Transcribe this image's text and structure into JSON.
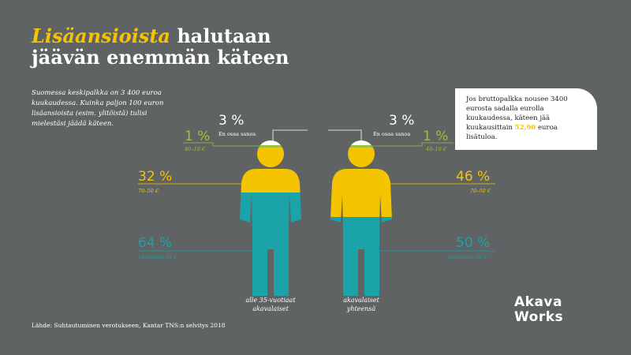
{
  "title": {
    "highlight": "Lisäansioista",
    "rest_line1": "halutaan",
    "line2": "jäävän enemmän käteen"
  },
  "intro": "Suomessa keskipalkka on 3 400 euroa kuukaudessa. Kuinka paljon 100 euron lisäansioista (esim. ylitöistä) tulisi mielestäsi jäädä käteen.",
  "left_figure": {
    "caption_line1": "alle 35-vuotiaat",
    "caption_line2": "akavalaiset",
    "top": {
      "pct": "3 %",
      "label": "En osaa sanoa",
      "value": 3
    },
    "green": {
      "pct": "1 %",
      "label": "40–10 €",
      "value": 1
    },
    "yellow": {
      "pct": "32 %",
      "label": "70–50 €",
      "value": 32
    },
    "teal": {
      "pct": "64 %",
      "label": "Vähintään 60 €",
      "value": 64
    }
  },
  "right_figure": {
    "caption_line1": "akavalaiset",
    "caption_line2": "yhteensä",
    "top": {
      "pct": "3 %",
      "label": "En osaa sanoa",
      "value": 3
    },
    "green": {
      "pct": "1 %",
      "label": "40–10 €",
      "value": 1
    },
    "yellow": {
      "pct": "46 %",
      "label": "70–50 €",
      "value": 46
    },
    "teal": {
      "pct": "50 %",
      "label": "Vähintään 60 €",
      "value": 50
    }
  },
  "note": {
    "before": "Jos bruttopalkka nousee 3400 eurosta sadalla eurolla kuukaudessa, käteen jää kuukausittain",
    "amount": "52,90",
    "after": "euroa lisätuloa."
  },
  "source": "Lähde: Suhtautuminen verotukseen, Kantar TNS:n selvitys 2018",
  "logo": {
    "line1": "Akava",
    "line2": "Works"
  },
  "colors": {
    "background": "#5f6364",
    "yellow": "#f4c400",
    "green": "#9bc23c",
    "teal": "#1aa3a8",
    "white": "#ffffff"
  }
}
